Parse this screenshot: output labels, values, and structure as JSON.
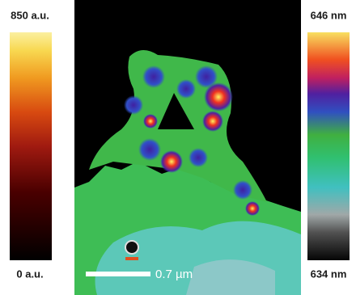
{
  "left_colorbar": {
    "max_label": "850 a.u.",
    "min_label": "0 a.u."
  },
  "right_colorbar": {
    "max_label": "646 nm",
    "min_label": "634 nm"
  },
  "image": {
    "scale_bar_label": "0.7 µm"
  }
}
